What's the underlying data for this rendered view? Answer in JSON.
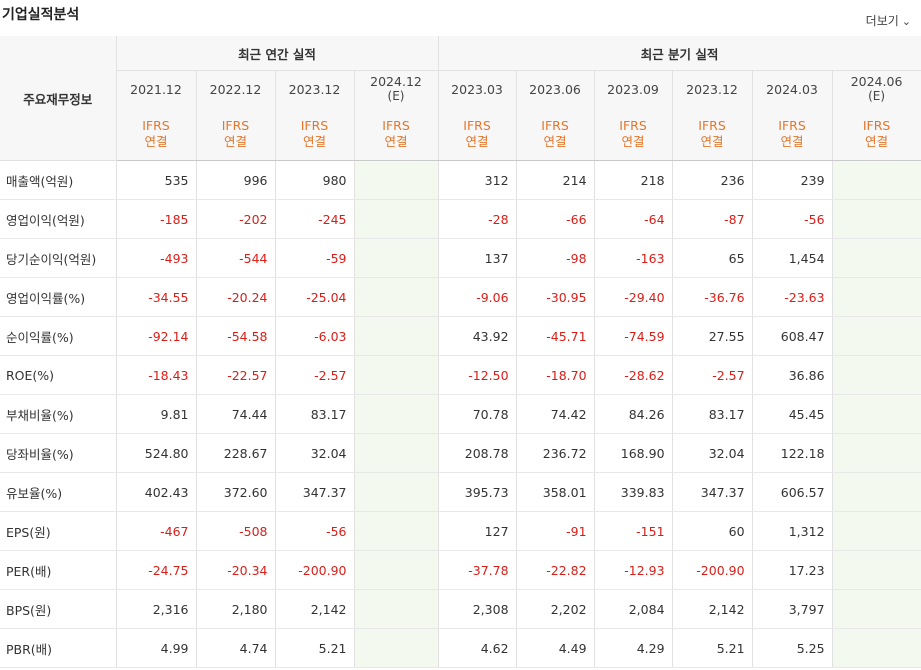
{
  "section_title": "기업실적분석",
  "more_label": "더보기",
  "more_icon": "chevron-down-icon",
  "row_header_label": "주요재무정보",
  "group_annual": "최근 연간 실적",
  "group_quarter": "최근 분기 실적",
  "periods": [
    {
      "date": "2021.12",
      "est": "",
      "std": "IFRS",
      "basis": "연결"
    },
    {
      "date": "2022.12",
      "est": "",
      "std": "IFRS",
      "basis": "연결"
    },
    {
      "date": "2023.12",
      "est": "",
      "std": "IFRS",
      "basis": "연결"
    },
    {
      "date": "2024.12",
      "est": "(E)",
      "std": "IFRS",
      "basis": "연결"
    },
    {
      "date": "2023.03",
      "est": "",
      "std": "IFRS",
      "basis": "연결"
    },
    {
      "date": "2023.06",
      "est": "",
      "std": "IFRS",
      "basis": "연결"
    },
    {
      "date": "2023.09",
      "est": "",
      "std": "IFRS",
      "basis": "연결"
    },
    {
      "date": "2023.12",
      "est": "",
      "std": "IFRS",
      "basis": "연결"
    },
    {
      "date": "2024.03",
      "est": "",
      "std": "IFRS",
      "basis": "연결"
    },
    {
      "date": "2024.06",
      "est": "(E)",
      "std": "IFRS",
      "basis": "연결"
    }
  ],
  "rows": [
    {
      "label": "매출액(억원)",
      "values": [
        "535",
        "996",
        "980",
        "",
        "312",
        "214",
        "218",
        "236",
        "239",
        ""
      ]
    },
    {
      "label": "영업이익(억원)",
      "values": [
        "-185",
        "-202",
        "-245",
        "",
        "-28",
        "-66",
        "-64",
        "-87",
        "-56",
        ""
      ]
    },
    {
      "label": "당기순이익(억원)",
      "values": [
        "-493",
        "-544",
        "-59",
        "",
        "137",
        "-98",
        "-163",
        "65",
        "1,454",
        ""
      ]
    },
    {
      "label": "영업이익률(%)",
      "values": [
        "-34.55",
        "-20.24",
        "-25.04",
        "",
        "-9.06",
        "-30.95",
        "-29.40",
        "-36.76",
        "-23.63",
        ""
      ]
    },
    {
      "label": "순이익률(%)",
      "values": [
        "-92.14",
        "-54.58",
        "-6.03",
        "",
        "43.92",
        "-45.71",
        "-74.59",
        "27.55",
        "608.47",
        ""
      ]
    },
    {
      "label": "ROE(%)",
      "values": [
        "-18.43",
        "-22.57",
        "-2.57",
        "",
        "-12.50",
        "-18.70",
        "-28.62",
        "-2.57",
        "36.86",
        ""
      ]
    },
    {
      "label": "부채비율(%)",
      "values": [
        "9.81",
        "74.44",
        "83.17",
        "",
        "70.78",
        "74.42",
        "84.26",
        "83.17",
        "45.45",
        ""
      ]
    },
    {
      "label": "당좌비율(%)",
      "values": [
        "524.80",
        "228.67",
        "32.04",
        "",
        "208.78",
        "236.72",
        "168.90",
        "32.04",
        "122.18",
        ""
      ]
    },
    {
      "label": "유보율(%)",
      "values": [
        "402.43",
        "372.60",
        "347.37",
        "",
        "395.73",
        "358.01",
        "339.83",
        "347.37",
        "606.57",
        ""
      ]
    },
    {
      "label": "EPS(원)",
      "values": [
        "-467",
        "-508",
        "-56",
        "",
        "127",
        "-91",
        "-151",
        "60",
        "1,312",
        ""
      ]
    },
    {
      "label": "PER(배)",
      "values": [
        "-24.75",
        "-20.34",
        "-200.90",
        "",
        "-37.78",
        "-22.82",
        "-12.93",
        "-200.90",
        "17.23",
        ""
      ]
    },
    {
      "label": "BPS(원)",
      "values": [
        "2,316",
        "2,180",
        "2,142",
        "",
        "2,308",
        "2,202",
        "2,084",
        "2,142",
        "3,797",
        ""
      ]
    },
    {
      "label": "PBR(배)",
      "values": [
        "4.99",
        "4.74",
        "5.21",
        "",
        "4.62",
        "4.49",
        "4.29",
        "5.21",
        "5.25",
        ""
      ]
    }
  ],
  "colors": {
    "negative": "#d91e18",
    "accounting_standard": "#e4762b",
    "estimate": "#4a8a3c",
    "estimate_bg": "#f3f9ef",
    "header_bg": "#f7f7f7"
  }
}
